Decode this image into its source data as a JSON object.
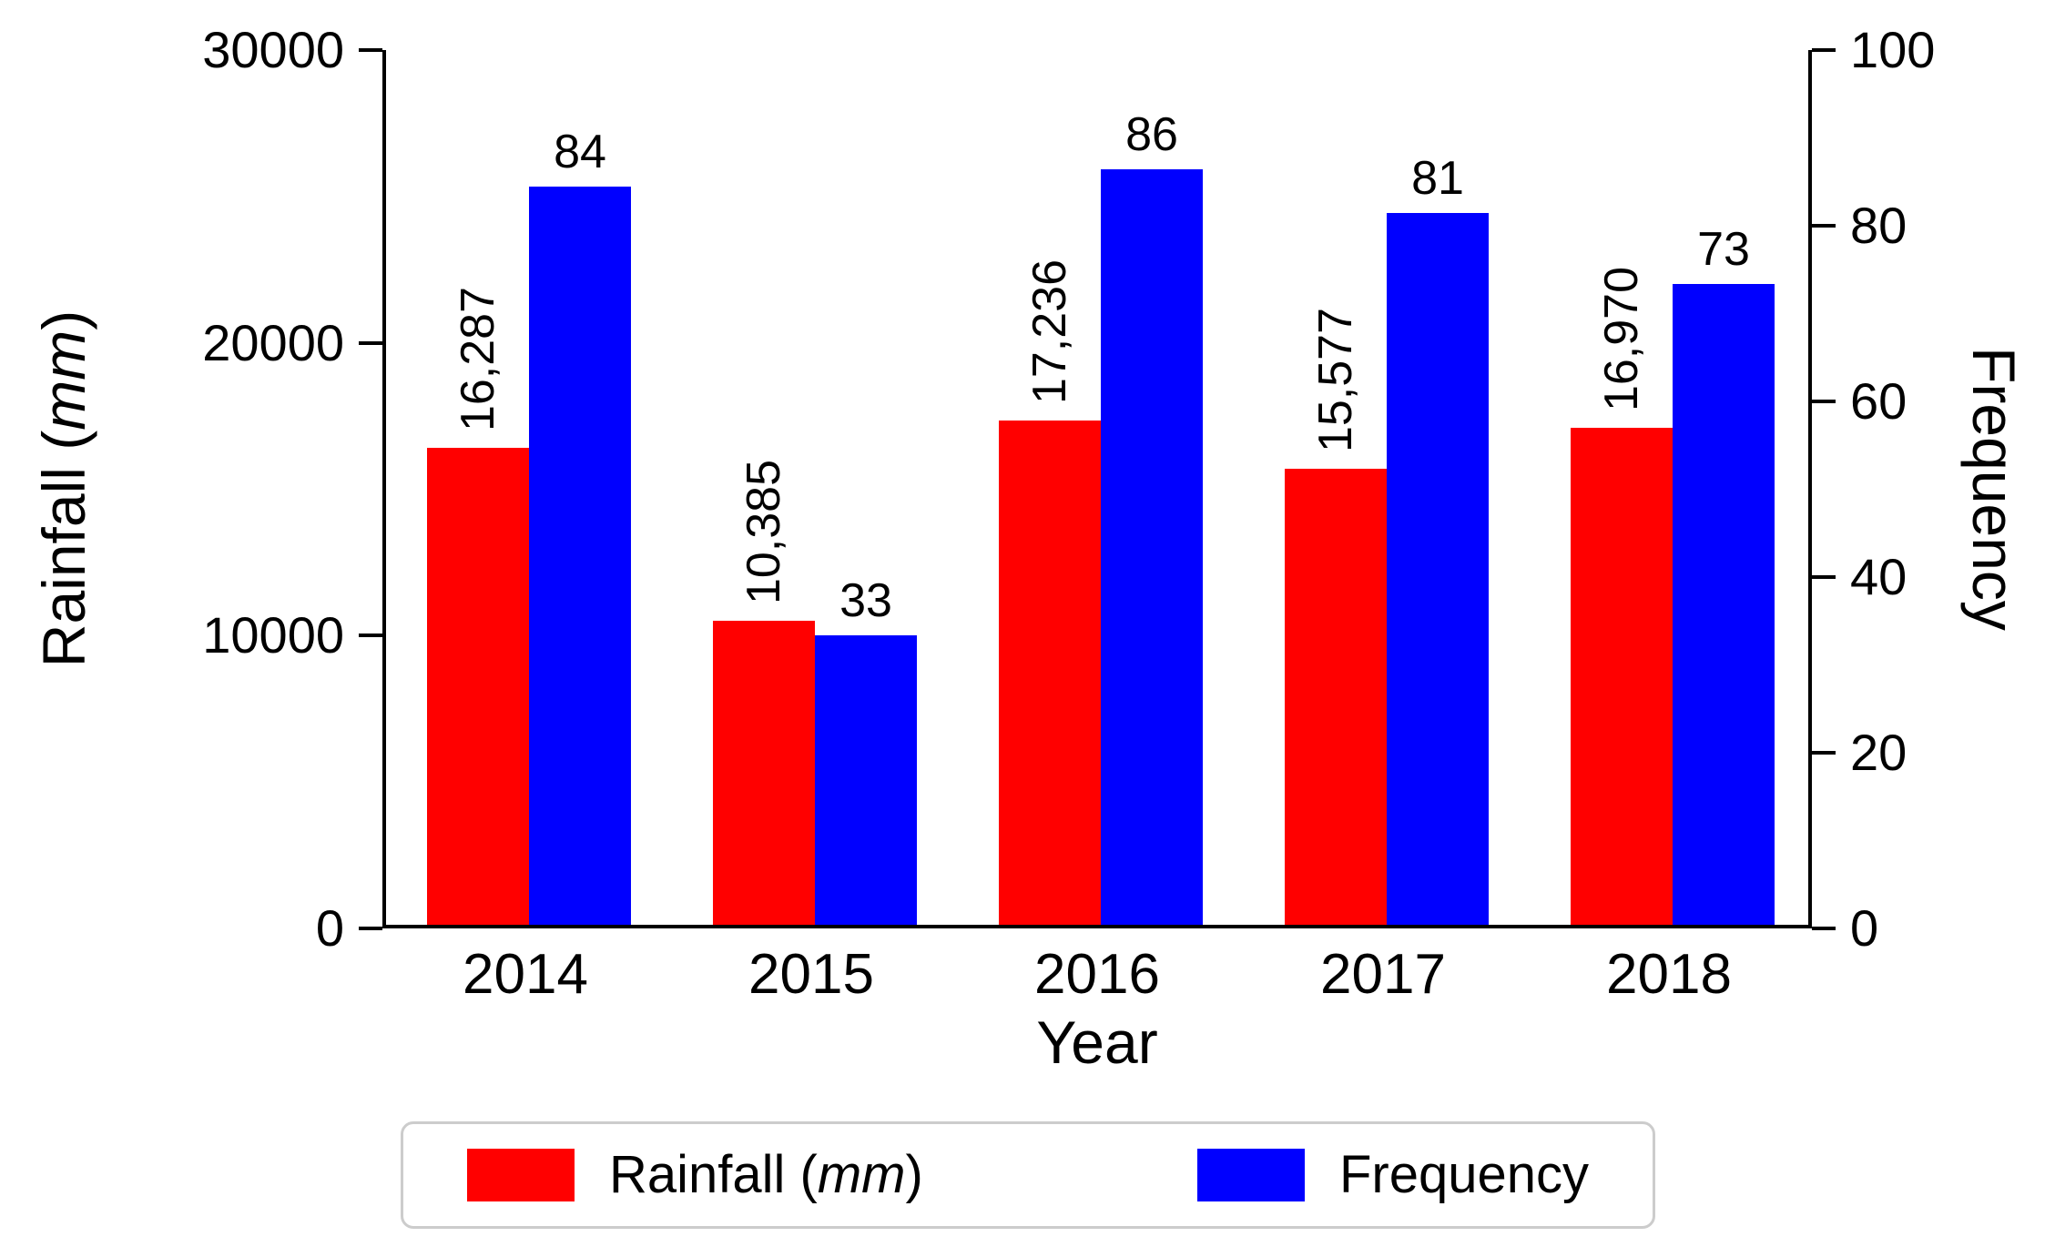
{
  "chart_data": {
    "type": "bar",
    "categories": [
      "2014",
      "2015",
      "2016",
      "2017",
      "2018"
    ],
    "series": [
      {
        "name": "Rainfall (mm)",
        "axis": "left",
        "color": "#ff0000",
        "values": [
          16287,
          10385,
          17236,
          15577,
          16970
        ],
        "labels": [
          "16,287",
          "10,385",
          "17,236",
          "15,577",
          "16,970"
        ],
        "label_rotation": -90
      },
      {
        "name": "Frequency",
        "axis": "right",
        "color": "#0000ff",
        "values": [
          84,
          33,
          86,
          81,
          73
        ],
        "labels": [
          "84",
          "33",
          "86",
          "81",
          "73"
        ],
        "label_rotation": 0
      }
    ],
    "left_axis": {
      "label_prefix": "Rainfall (",
      "label_italic": "mm",
      "label_suffix": ")",
      "min": 0,
      "max": 30000,
      "ticks": [
        0,
        10000,
        20000,
        30000
      ],
      "tick_labels": [
        "0",
        "10000",
        "20000",
        "30000"
      ]
    },
    "right_axis": {
      "label": "Frequency",
      "min": 0,
      "max": 100,
      "ticks": [
        0,
        20,
        40,
        60,
        80,
        100
      ],
      "tick_labels": [
        "0",
        "20",
        "40",
        "60",
        "80",
        "100"
      ]
    },
    "xlabel": "Year",
    "grid": false,
    "legend_position": "bottom"
  },
  "legend": {
    "items": [
      {
        "label_prefix": "Rainfall (",
        "label_italic": "mm",
        "label_suffix": ")",
        "color": "#ff0000"
      },
      {
        "label": "Frequency",
        "color": "#0000ff"
      }
    ]
  }
}
